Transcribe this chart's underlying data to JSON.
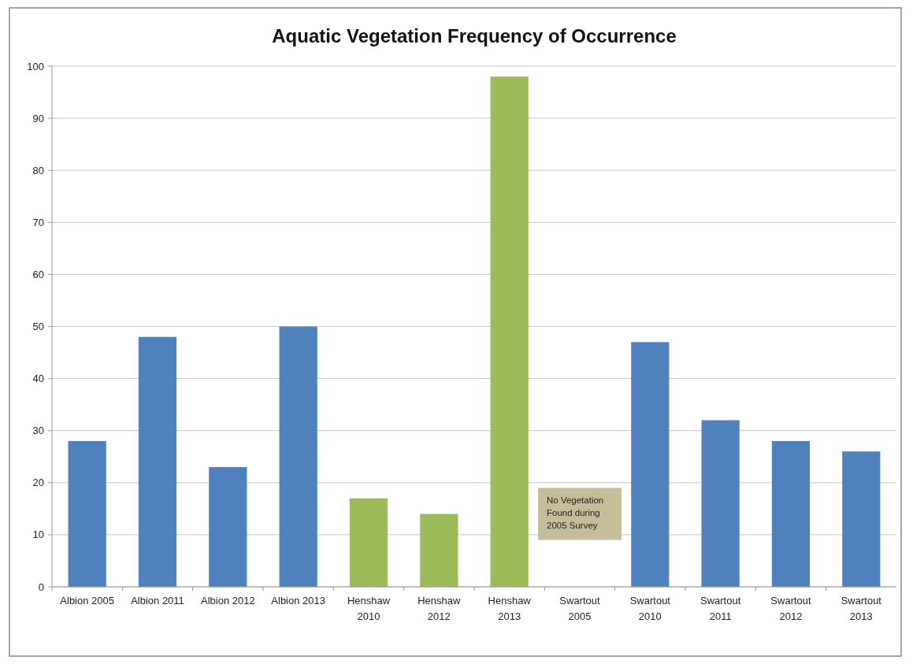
{
  "chart_data": {
    "type": "bar",
    "title": "Aquatic Vegetation Frequency of Occurrence",
    "categories": [
      "Albion 2005",
      "Albion 2011",
      "Albion 2012",
      "Albion 2013",
      "Henshaw 2010",
      "Henshaw 2012",
      "Henshaw 2013",
      "Swartout 2005",
      "Swartout 2010",
      "Swartout 2011",
      "Swartout 2012",
      "Swartout 2013"
    ],
    "values": [
      28,
      48,
      23,
      50,
      17,
      14,
      98,
      0,
      47,
      32,
      28,
      26
    ],
    "colors": [
      "#4f81bd",
      "#4f81bd",
      "#4f81bd",
      "#4f81bd",
      "#9bbb59",
      "#9bbb59",
      "#9bbb59",
      "#4f81bd",
      "#4f81bd",
      "#4f81bd",
      "#4f81bd",
      "#4f81bd"
    ],
    "ylim": [
      0,
      100
    ],
    "yticks": [
      0,
      10,
      20,
      30,
      40,
      50,
      60,
      70,
      80,
      90,
      100
    ],
    "grid": "y",
    "annotations": [
      "No Vegetation Found during 2005 Survey"
    ]
  }
}
